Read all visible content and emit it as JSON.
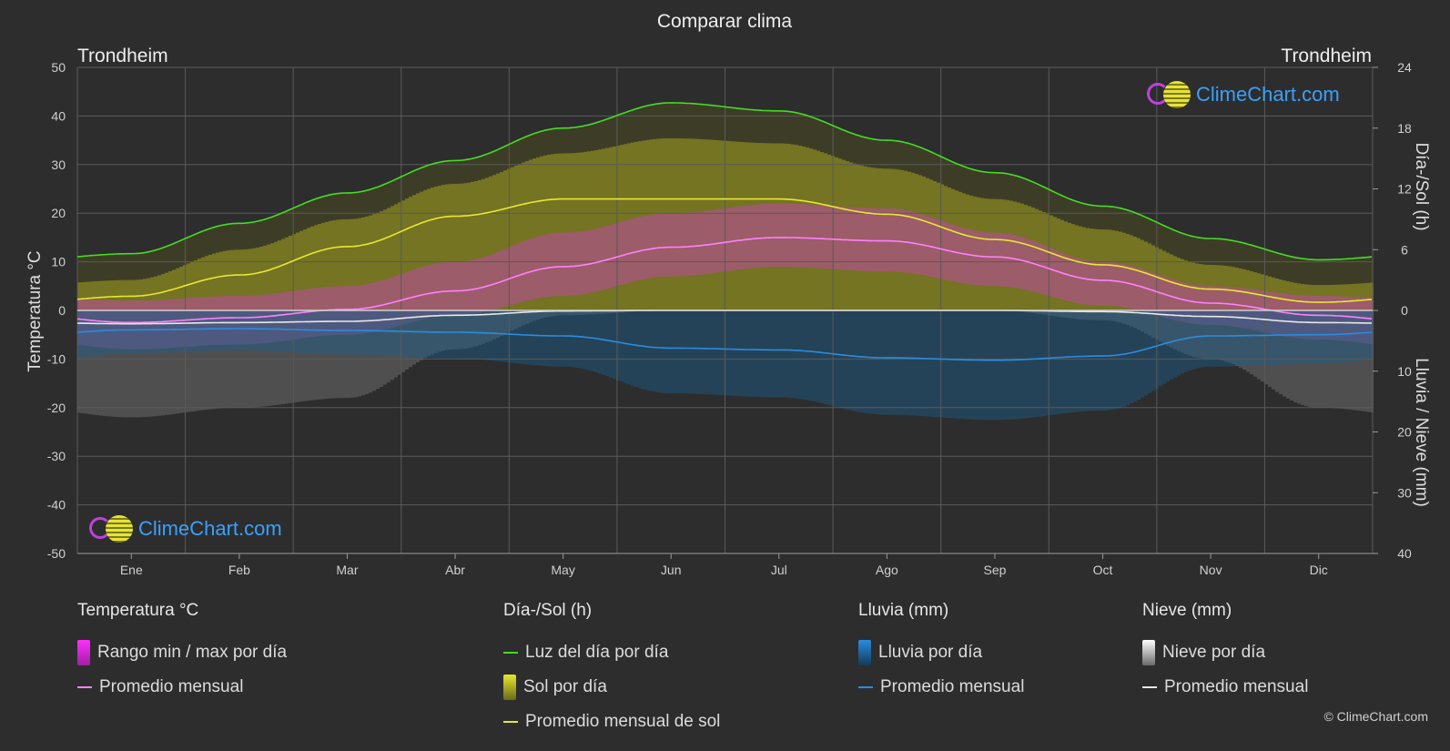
{
  "title": "Comparar clima",
  "city_left": "Trondheim",
  "city_right": "Trondheim",
  "axis_left_label": "Temperatura °C",
  "axis_right_top_label": "Día-/Sol (h)",
  "axis_right_bottom_label": "Lluvia / Nieve (mm)",
  "logo_text": "ClimeChart.com",
  "copyright": "© ClimeChart.com",
  "colors": {
    "background": "#2d2d2d",
    "grid": "#5a5a5a",
    "daylight": "#44dd22",
    "sun_avg": "#e8e830",
    "temp_avg": "#ff80ff",
    "rain_avg": "#2a8ce0",
    "snow_avg": "#e8e8e8",
    "temp_range": "#d040c0",
    "sun_fill": "#9a9a20",
    "rain_fill": "#1d5f8f",
    "snow_fill": "#7a7a7a"
  },
  "legend": {
    "temperature": {
      "header": "Temperatura °C",
      "range": "Rango min / max por día",
      "avg": "Promedio mensual"
    },
    "daysun": {
      "header": "Día-/Sol (h)",
      "daylight": "Luz del día por día",
      "sun": "Sol por día",
      "sun_avg": "Promedio mensual de sol"
    },
    "rain": {
      "header": "Lluvia (mm)",
      "rain": "Lluvia por día",
      "avg": "Promedio mensual"
    },
    "snow": {
      "header": "Nieve (mm)",
      "snow": "Nieve por día",
      "avg": "Promedio mensual"
    }
  },
  "chart_data": {
    "type": "line",
    "months": [
      "Ene",
      "Feb",
      "Mar",
      "Abr",
      "May",
      "Jun",
      "Jul",
      "Ago",
      "Sep",
      "Oct",
      "Nov",
      "Dic"
    ],
    "y_left": {
      "label": "Temperatura °C",
      "min": -50,
      "max": 50,
      "ticks": [
        50,
        40,
        30,
        20,
        10,
        0,
        -10,
        -20,
        -30,
        -40,
        -50
      ]
    },
    "y_right_top": {
      "label": "Día-/Sol (h)",
      "min": 0,
      "max": 24,
      "ticks": [
        24,
        18,
        12,
        6,
        0
      ]
    },
    "y_right_bottom": {
      "label": "Lluvia / Nieve (mm)",
      "min": 0,
      "max": 40,
      "ticks": [
        10,
        20,
        30,
        40
      ]
    },
    "series": [
      {
        "name": "Luz del día por día",
        "axis": "hours",
        "values": [
          5.6,
          8.6,
          11.6,
          14.8,
          18.0,
          20.5,
          19.7,
          16.8,
          13.6,
          10.3,
          7.1,
          5.0
        ]
      },
      {
        "name": "Promedio mensual de sol",
        "axis": "hours",
        "values": [
          1.4,
          3.5,
          6.3,
          9.3,
          11.0,
          11.0,
          11.0,
          9.5,
          7.0,
          4.5,
          2.1,
          0.8
        ]
      },
      {
        "name": "Sol por día",
        "axis": "hours",
        "values": [
          3.0,
          6.0,
          9.0,
          12.5,
          15.5,
          17.0,
          16.5,
          14.0,
          11.0,
          8.0,
          4.5,
          2.5
        ]
      },
      {
        "name": "Temperatura promedio mensual",
        "axis": "temp",
        "values": [
          -2.5,
          -1.5,
          0.2,
          4.0,
          9.0,
          13.0,
          15.0,
          14.3,
          11.0,
          6.2,
          1.5,
          -1.0
        ]
      },
      {
        "name": "Rango max por día",
        "axis": "temp",
        "values": [
          2.0,
          3.0,
          5.0,
          10.0,
          16.0,
          20.0,
          22.0,
          21.0,
          16.0,
          10.0,
          5.0,
          3.0
        ]
      },
      {
        "name": "Rango min por día",
        "axis": "temp",
        "values": [
          -8.0,
          -7.0,
          -5.0,
          -1.0,
          3.0,
          7.0,
          9.0,
          8.0,
          5.0,
          1.0,
          -3.0,
          -6.0
        ]
      },
      {
        "name": "Nieve promedio mensual",
        "axis": "precip",
        "values": [
          2.2,
          2.0,
          1.8,
          0.8,
          0.1,
          0.0,
          0.0,
          0.0,
          0.0,
          0.2,
          1.0,
          2.0
        ]
      },
      {
        "name": "Lluvia promedio mensual",
        "axis": "precip",
        "values": [
          3.2,
          3.0,
          3.3,
          3.6,
          4.2,
          6.2,
          6.5,
          7.8,
          8.2,
          7.5,
          4.2,
          4.0
        ]
      }
    ]
  }
}
